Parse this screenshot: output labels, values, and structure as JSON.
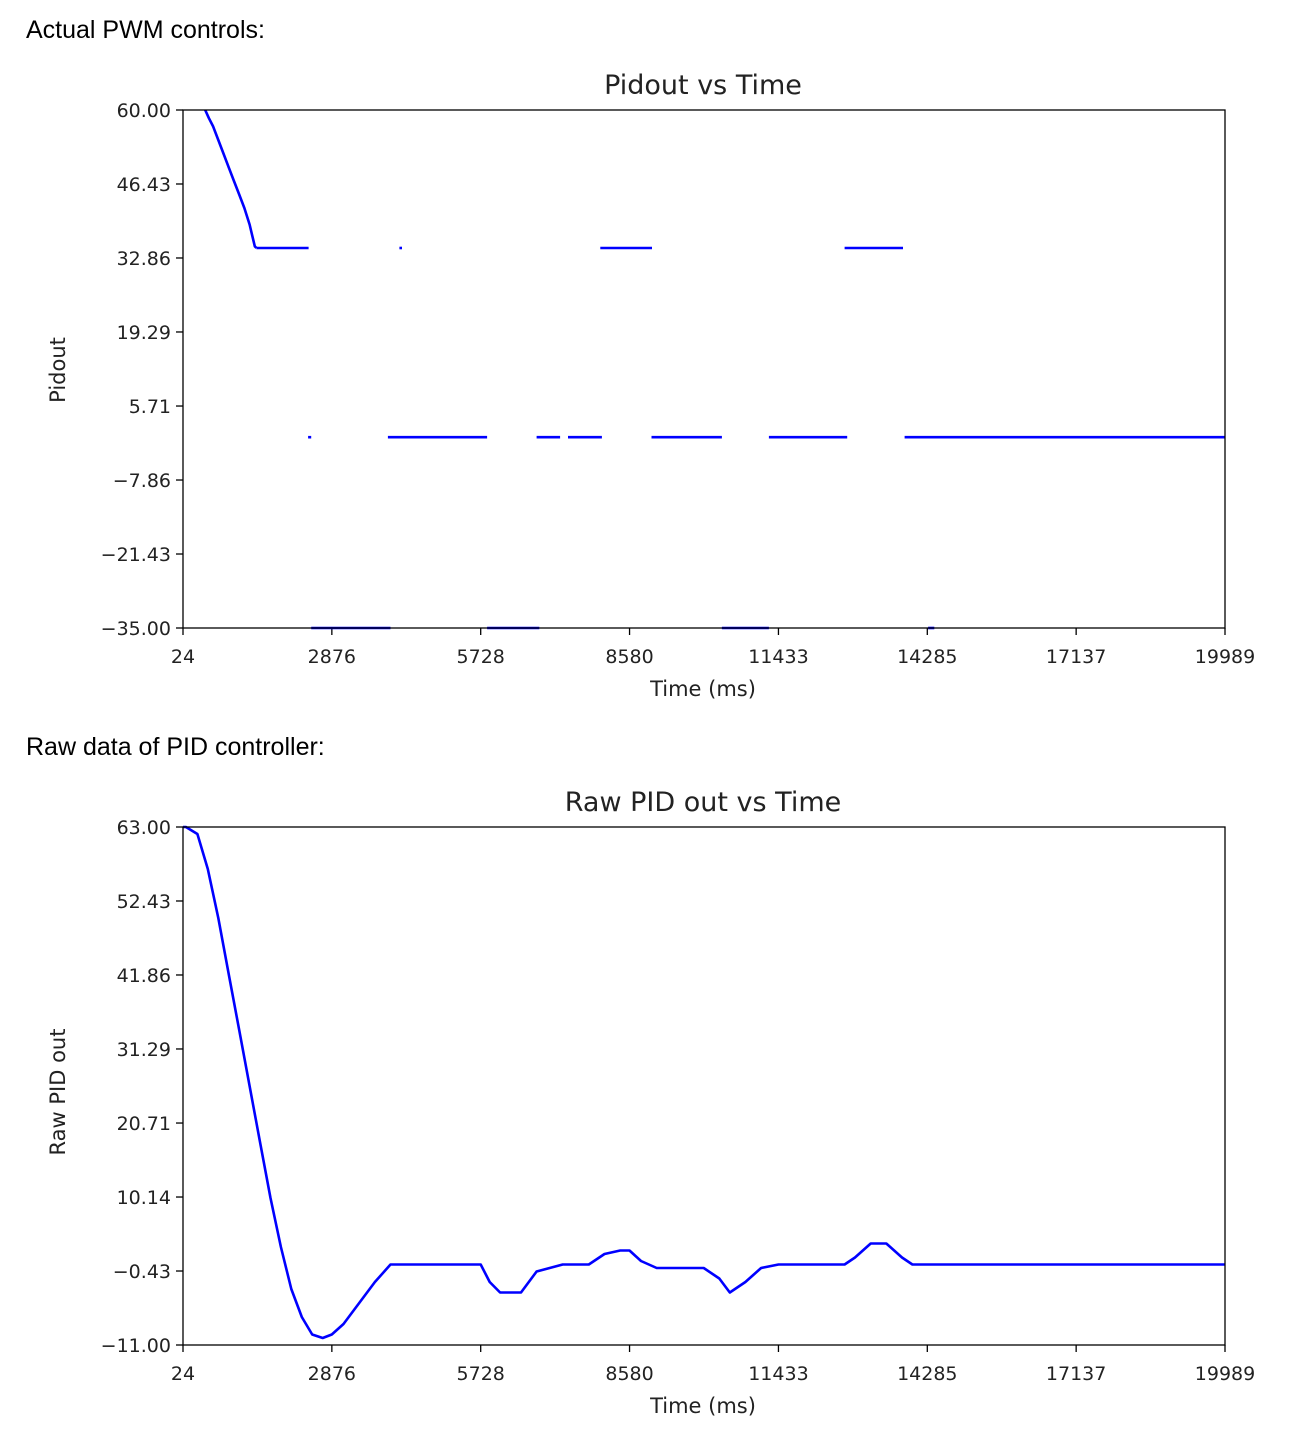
{
  "captions": {
    "top": "Actual PWM controls:",
    "bottom": "Raw data of PID controller:"
  },
  "colors": {
    "series": "#0000ff",
    "axis": "#000000",
    "text": "#222222"
  },
  "chart_data": [
    {
      "type": "scatter",
      "title": "Pidout vs Time",
      "xlabel": "Time (ms)",
      "ylabel": "Pidout",
      "xlim": [
        24,
        19989
      ],
      "ylim": [
        -35.0,
        60.0
      ],
      "xticks": [
        "24",
        "2876",
        "5728",
        "8580",
        "11433",
        "14285",
        "17137",
        "19989"
      ],
      "xtick_values": [
        24,
        2876,
        5728,
        8580,
        11433,
        14285,
        17137,
        19989
      ],
      "yticks": [
        "60.00",
        "46.43",
        "32.86",
        "19.29",
        "5.71",
        "−7.86",
        "−21.43",
        "−35.00"
      ],
      "ytick_values": [
        60.0,
        46.43,
        32.86,
        19.29,
        5.71,
        -7.86,
        -21.43,
        -35.0
      ],
      "grid": false,
      "series": [
        {
          "segments": [
            [
              [
                450,
                60
              ],
              [
                520,
                58.5
              ],
              [
                600,
                57
              ],
              [
                700,
                54.5
              ],
              [
                800,
                52
              ],
              [
                900,
                49.5
              ],
              [
                1000,
                47
              ],
              [
                1100,
                44.5
              ],
              [
                1200,
                42
              ],
              [
                1300,
                39
              ],
              [
                1350,
                37
              ],
              [
                1400,
                35
              ],
              [
                1430,
                34.7
              ]
            ],
            [
              [
                1430,
                34.7
              ],
              [
                2430,
                34.7
              ]
            ],
            [
              [
                4170,
                34.7
              ],
              [
                4220,
                34.7
              ]
            ],
            [
              [
                8020,
                34.7
              ],
              [
                9010,
                34.7
              ]
            ],
            [
              [
                12700,
                34.7
              ],
              [
                13820,
                34.7
              ]
            ],
            [
              [
                2420,
                0
              ],
              [
                2480,
                0
              ]
            ],
            [
              [
                3950,
                0
              ],
              [
                5850,
                0
              ]
            ],
            [
              [
                6800,
                0
              ],
              [
                7250,
                0
              ]
            ],
            [
              [
                7400,
                0
              ],
              [
                8050,
                0
              ]
            ],
            [
              [
                9000,
                0
              ],
              [
                10350,
                0
              ]
            ],
            [
              [
                11250,
                0
              ],
              [
                12750,
                0
              ]
            ],
            [
              [
                13850,
                0
              ],
              [
                19989,
                0
              ]
            ],
            [
              [
                2480,
                -35
              ],
              [
                4000,
                -35
              ]
            ],
            [
              [
                5850,
                -35
              ],
              [
                6850,
                -35
              ]
            ],
            [
              [
                10350,
                -35
              ],
              [
                11250,
                -35
              ]
            ],
            [
              [
                14300,
                -35
              ],
              [
                14420,
                -35
              ]
            ]
          ]
        }
      ]
    },
    {
      "type": "line",
      "title": "Raw PID out vs Time",
      "xlabel": "Time (ms)",
      "ylabel": "Raw PID out",
      "xlim": [
        24,
        19989
      ],
      "ylim": [
        -11.0,
        63.0
      ],
      "xticks": [
        "24",
        "2876",
        "5728",
        "8580",
        "11433",
        "14285",
        "17137",
        "19989"
      ],
      "xtick_values": [
        24,
        2876,
        5728,
        8580,
        11433,
        14285,
        17137,
        19989
      ],
      "yticks": [
        "63.00",
        "52.43",
        "41.86",
        "31.29",
        "20.71",
        "10.14",
        "−0.43",
        "−11.00"
      ],
      "ytick_values": [
        63.0,
        52.43,
        41.86,
        31.29,
        20.71,
        10.14,
        -0.43,
        -11.0
      ],
      "grid": false,
      "series": [
        {
          "x": [
            24,
            80,
            300,
            500,
            700,
            900,
            1100,
            1300,
            1500,
            1700,
            1900,
            2100,
            2300,
            2500,
            2700,
            2876,
            3100,
            3400,
            3700,
            4000,
            4400,
            5000,
            5728,
            5900,
            6100,
            6500,
            6800,
            7300,
            7800,
            8100,
            8400,
            8580,
            8800,
            9100,
            9500,
            10000,
            10300,
            10500,
            10800,
            11100,
            11433,
            12000,
            12700,
            12900,
            13200,
            13500,
            13800,
            14000,
            15000,
            16000,
            17000,
            18000,
            19989
          ],
          "y": [
            63.0,
            63.0,
            62.0,
            57.0,
            50.0,
            42.0,
            34.0,
            26.0,
            18.0,
            10.0,
            3.0,
            -3.0,
            -7.0,
            -9.5,
            -10.0,
            -9.5,
            -8.0,
            -5.0,
            -2.0,
            0.5,
            0.5,
            0.5,
            0.5,
            -2.0,
            -3.5,
            -3.5,
            -0.5,
            0.5,
            0.5,
            2.0,
            2.5,
            2.5,
            1.0,
            0.0,
            0.0,
            0.0,
            -1.5,
            -3.5,
            -2.0,
            0.0,
            0.5,
            0.5,
            0.5,
            1.5,
            3.5,
            3.5,
            1.5,
            0.5,
            0.5,
            0.5,
            0.5,
            0.5,
            0.5
          ]
        }
      ]
    }
  ]
}
